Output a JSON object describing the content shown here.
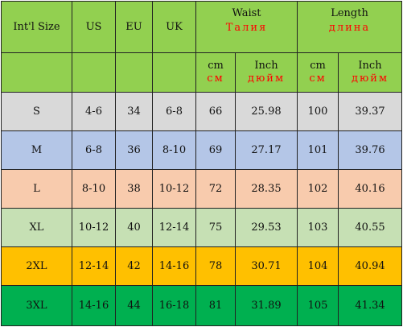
{
  "colors": {
    "header": "#92d050",
    "S": "#d9d9d9",
    "M": "#b4c6e7",
    "L": "#f8cbad",
    "XL": "#c6e0b4",
    "2XL": "#ffc000",
    "3XL": "#00b050",
    "russian_text": "#ff0000"
  },
  "header": {
    "intl_size": "Int'l Size",
    "us": "US",
    "eu": "EU",
    "uk": "UK",
    "waist": {
      "en": "Waist",
      "ru": "Талия"
    },
    "length": {
      "en": "Length",
      "ru": "длина"
    },
    "units": {
      "waist_cm": {
        "en": "cm",
        "ru": "см"
      },
      "waist_inch": {
        "en": "Inch",
        "ru": "дюйм"
      },
      "length_cm": {
        "en": "cm",
        "ru": "см"
      },
      "length_inch": {
        "en": "Inch",
        "ru": "дюйм"
      }
    }
  },
  "rows": [
    {
      "size": "S",
      "us": "4-6",
      "eu": "34",
      "uk": "6-8",
      "waist_cm": "66",
      "waist_inch": "25.98",
      "length_cm": "100",
      "length_inch": "39.37"
    },
    {
      "size": "M",
      "us": "6-8",
      "eu": "36",
      "uk": "8-10",
      "waist_cm": "69",
      "waist_inch": "27.17",
      "length_cm": "101",
      "length_inch": "39.76"
    },
    {
      "size": "L",
      "us": "8-10",
      "eu": "38",
      "uk": "10-12",
      "waist_cm": "72",
      "waist_inch": "28.35",
      "length_cm": "102",
      "length_inch": "40.16"
    },
    {
      "size": "XL",
      "us": "10-12",
      "eu": "40",
      "uk": "12-14",
      "waist_cm": "75",
      "waist_inch": "29.53",
      "length_cm": "103",
      "length_inch": "40.55"
    },
    {
      "size": "2XL",
      "us": "12-14",
      "eu": "42",
      "uk": "14-16",
      "waist_cm": "78",
      "waist_inch": "30.71",
      "length_cm": "104",
      "length_inch": "40.94"
    },
    {
      "size": "3XL",
      "us": "14-16",
      "eu": "44",
      "uk": "16-18",
      "waist_cm": "81",
      "waist_inch": "31.89",
      "length_cm": "105",
      "length_inch": "41.34"
    }
  ]
}
